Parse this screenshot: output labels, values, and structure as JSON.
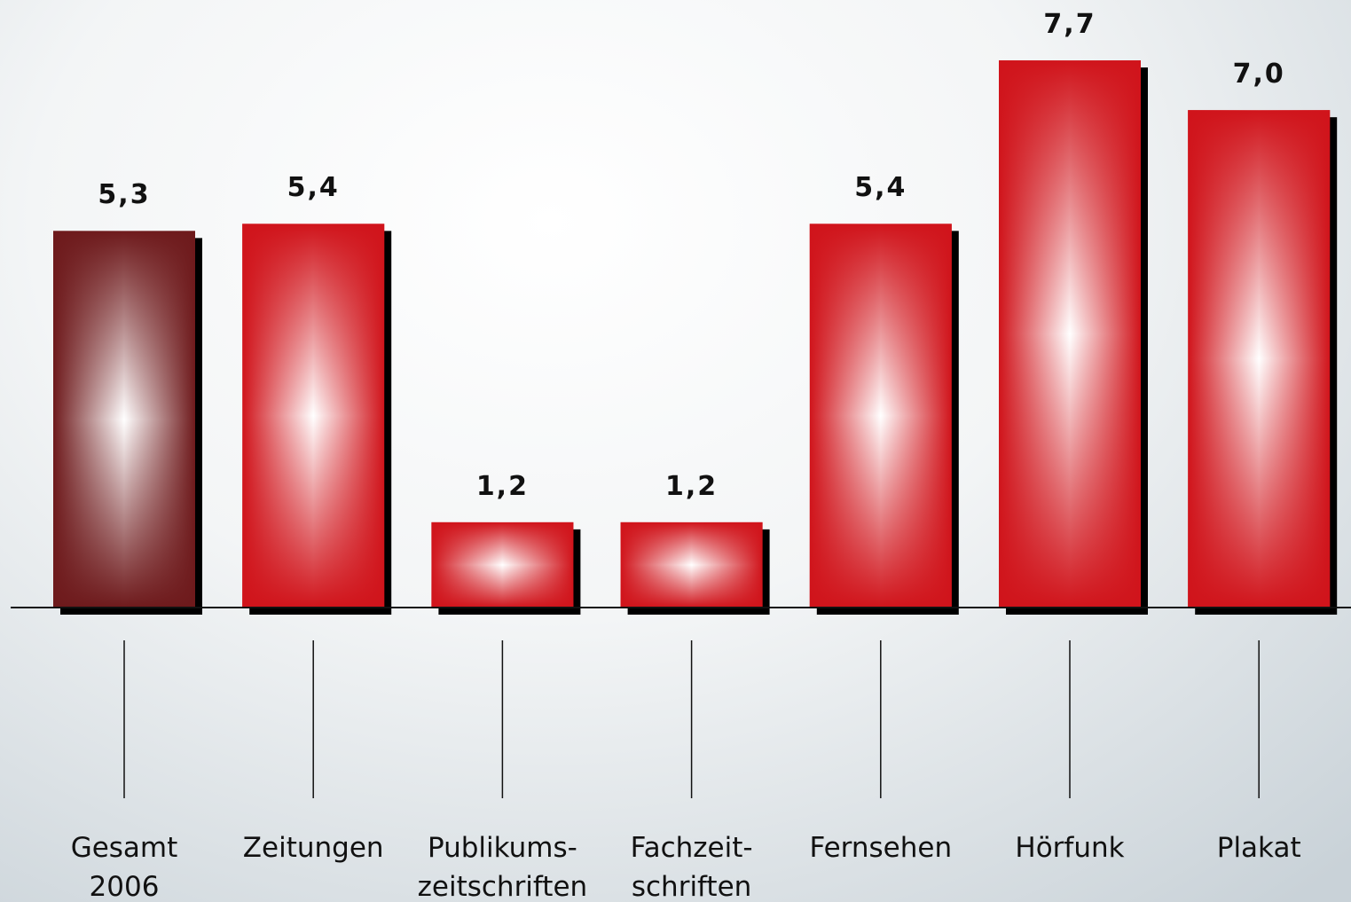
{
  "chart_data": {
    "type": "bar",
    "categories": [
      "Gesamt\n2006",
      "Zeitungen",
      "Publikums-\nzeitschriften",
      "Fachzeit-\nschriften",
      "Fernsehen",
      "Hörfunk",
      "Plakat"
    ],
    "values": [
      5.3,
      5.4,
      1.2,
      1.2,
      5.4,
      7.7,
      7.0
    ],
    "value_labels": [
      "5,3",
      "5,4",
      "1,2",
      "1,2",
      "5,4",
      "7,7",
      "7,0"
    ],
    "colors": [
      "#6e1a1c",
      "#d0141b",
      "#d0141b",
      "#d0141b",
      "#d0141b",
      "#d0141b",
      "#d0141b"
    ],
    "ylim": [
      0,
      8.5
    ]
  }
}
